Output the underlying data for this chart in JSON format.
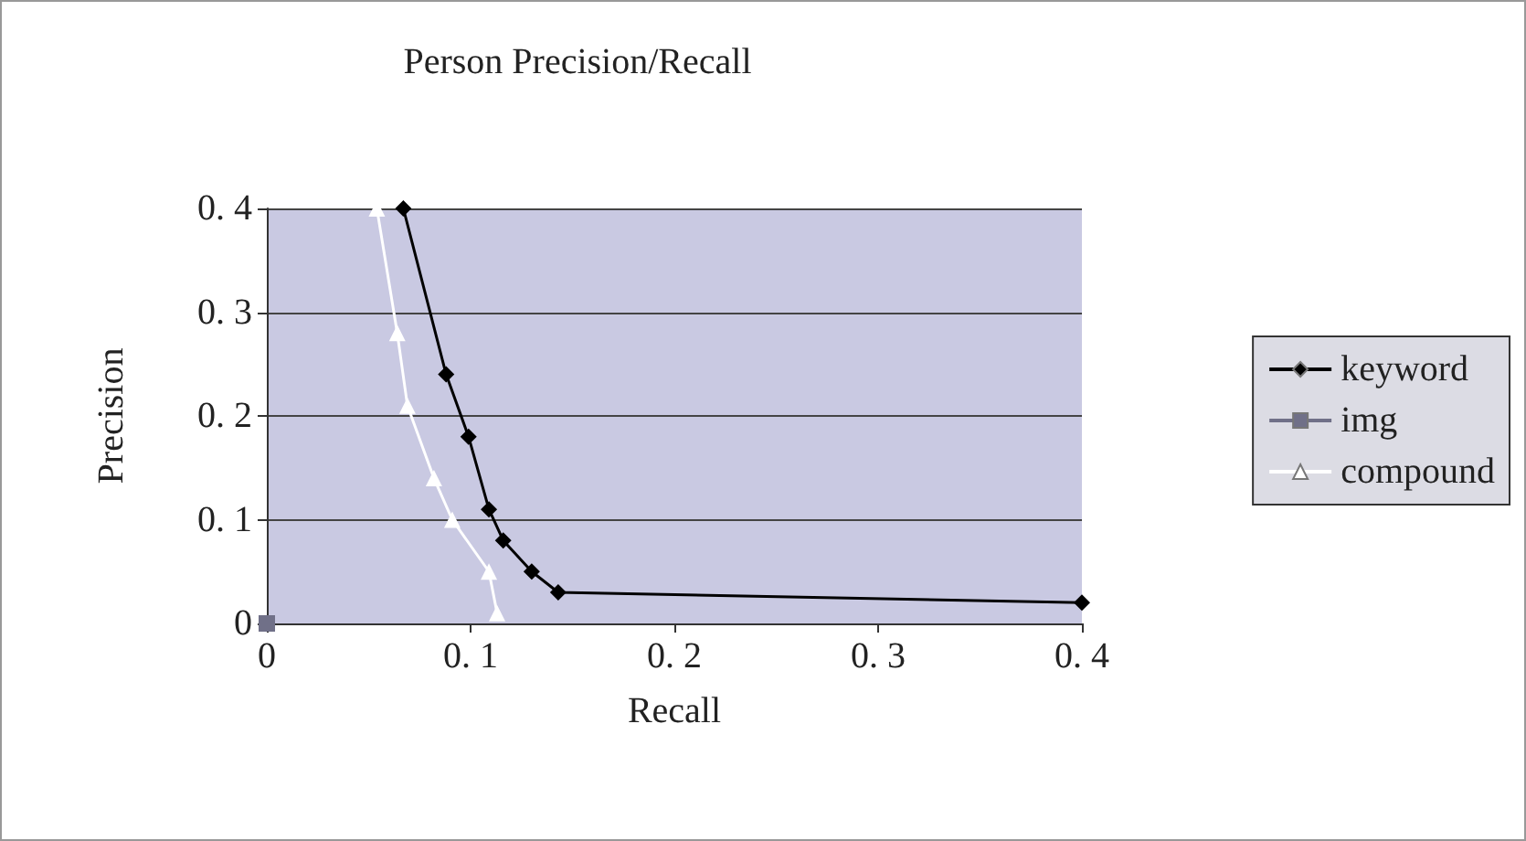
{
  "chart_data": {
    "type": "line",
    "title": "Person Precision/Recall",
    "xlabel": "Recall",
    "ylabel": "Precision",
    "xlim": [
      0,
      0.4
    ],
    "xticks": [
      0,
      0.1,
      0.2,
      0.3,
      0.4
    ],
    "ylim": [
      0,
      0.4
    ],
    "yticks": [
      0,
      0.1,
      0.2,
      0.3,
      0.4
    ],
    "grid": "y",
    "legend": "right",
    "series": [
      {
        "name": "keyword",
        "color": "#000000",
        "marker": "diamond",
        "x": [
          0.067,
          0.088,
          0.099,
          0.109,
          0.116,
          0.13,
          0.143,
          0.4
        ],
        "values": [
          0.4,
          0.24,
          0.18,
          0.11,
          0.08,
          0.05,
          0.03,
          0.02
        ]
      },
      {
        "name": "img",
        "color": "#707088",
        "marker": "square",
        "x": [
          0
        ],
        "values": [
          0
        ]
      },
      {
        "name": "compound",
        "color": "#ffffff",
        "marker": "triangle",
        "x": [
          0.054,
          0.064,
          0.069,
          0.082,
          0.091,
          0.109,
          0.113
        ],
        "values": [
          0.4,
          0.28,
          0.21,
          0.14,
          0.1,
          0.05,
          0.01
        ]
      }
    ]
  }
}
